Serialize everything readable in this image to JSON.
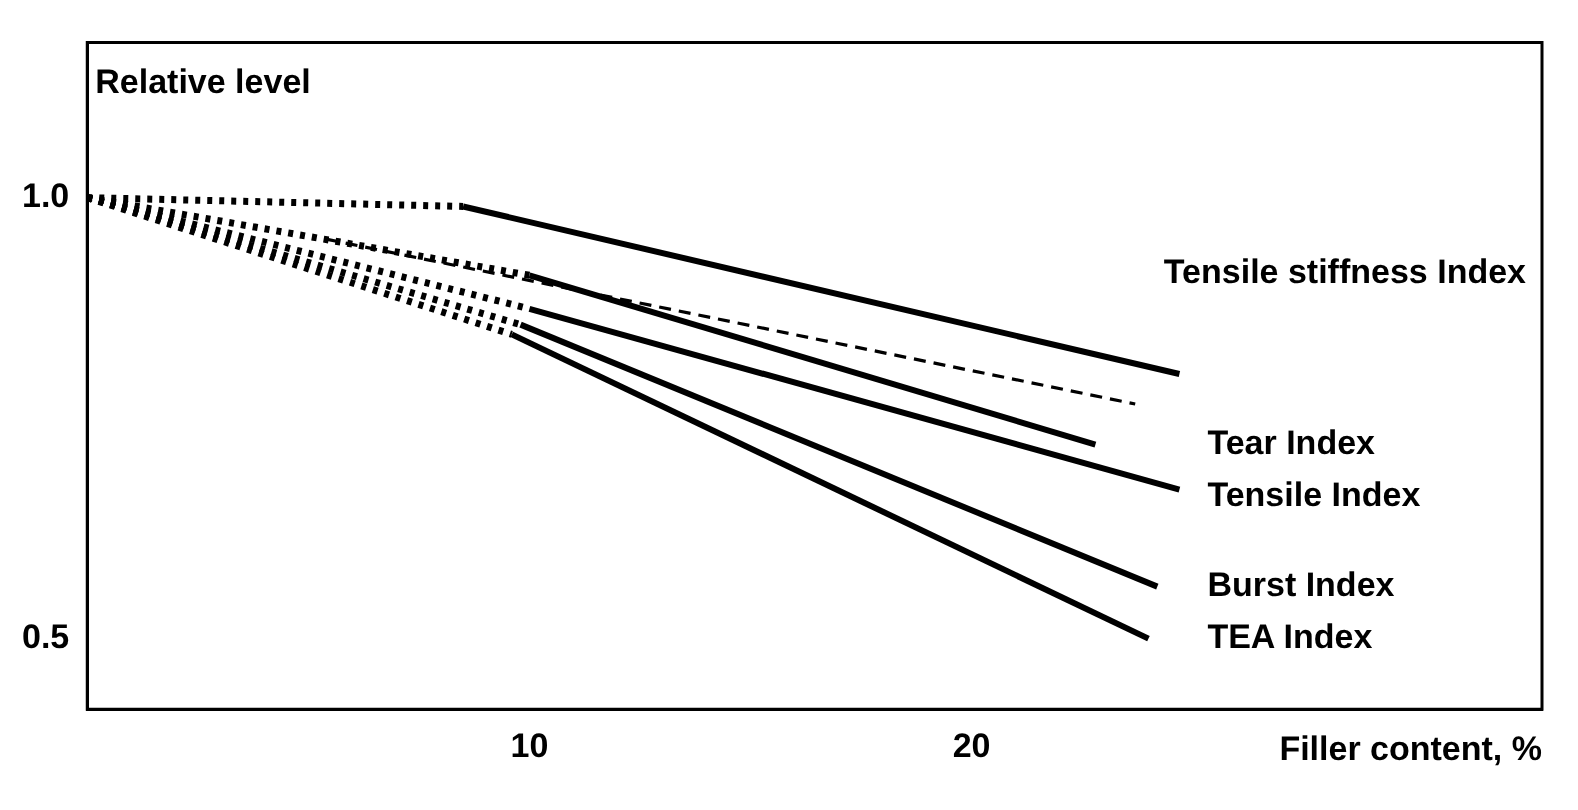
{
  "chart_data": {
    "type": "line",
    "ylabel": "Relative level",
    "xlabel": "Filler content, %",
    "xlim": [
      0,
      32.9
    ],
    "xticks": [
      10,
      20
    ],
    "ylim": [
      0.42,
      1.176
    ],
    "yticks": [
      0.5,
      {
        "value": 1,
        "label": "1.0"
      }
    ],
    "grid": false,
    "legend": false,
    "marker": "none",
    "series": [
      {
        "name": "Tensile stiffness Index",
        "color": "#000000",
        "line_style": "solid",
        "x": [
          8.5,
          24.7
        ],
        "values": [
          0.99,
          0.8
        ]
      },
      {
        "name": "Tear Index",
        "color": "#000000",
        "line_style": "solid",
        "x": [
          10,
          22.8
        ],
        "values": [
          0.912,
          0.72
        ]
      },
      {
        "name": "Tensile Index",
        "color": "#000000",
        "line_style": "solid",
        "x": [
          10,
          24.7
        ],
        "values": [
          0.874,
          0.669
        ]
      },
      {
        "name": "Burst Index",
        "color": "#000000",
        "line_style": "solid",
        "x": [
          9.8,
          24.2
        ],
        "values": [
          0.856,
          0.559
        ]
      },
      {
        "name": "TEA Index",
        "color": "#000000",
        "line_style": "solid",
        "x": [
          9.6,
          24
        ],
        "values": [
          0.845,
          0.5
        ]
      },
      {
        "color": "#000000",
        "line_style": "dashed",
        "x": [
          5.4,
          23.7
        ],
        "values": [
          0.953,
          0.766
        ]
      },
      {
        "color": "#000000",
        "line_style": "dotted",
        "x": [
          0,
          8.5
        ],
        "values": [
          1.0,
          0.99
        ]
      },
      {
        "color": "#000000",
        "line_style": "dotted",
        "x": [
          0,
          10
        ],
        "values": [
          1.0,
          0.912
        ]
      },
      {
        "color": "#000000",
        "line_style": "dotted",
        "x": [
          0,
          10
        ],
        "values": [
          1.0,
          0.874
        ]
      },
      {
        "color": "#000000",
        "line_style": "dotted",
        "x": [
          0,
          9.8
        ],
        "values": [
          1.0,
          0.856
        ]
      },
      {
        "color": "#000000",
        "line_style": "dotted",
        "x": [
          0,
          9.6
        ],
        "values": [
          1.0,
          0.845
        ]
      }
    ]
  }
}
